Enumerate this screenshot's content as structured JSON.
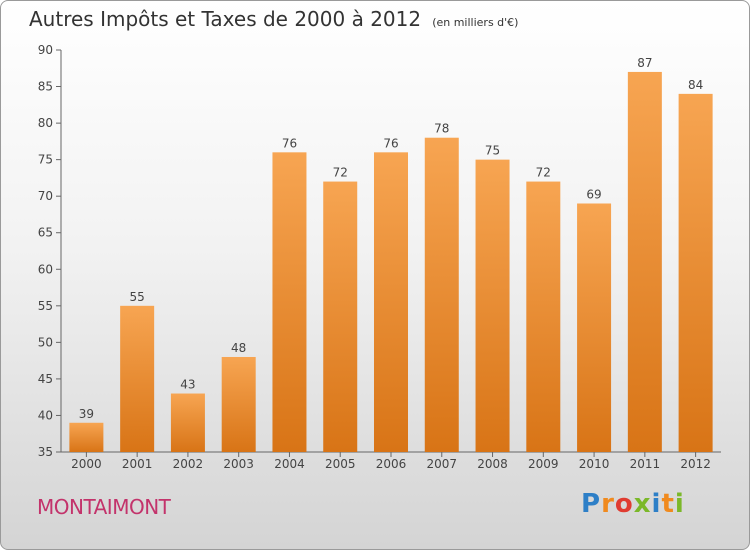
{
  "chart_data": {
    "type": "bar",
    "title": "Autres Impôts et Taxes de 2000 à 2012",
    "subtitle": "(en milliers d'€)",
    "categories": [
      "2000",
      "2001",
      "2002",
      "2003",
      "2004",
      "2005",
      "2006",
      "2007",
      "2008",
      "2009",
      "2010",
      "2011",
      "2012"
    ],
    "values": [
      39,
      55,
      43,
      48,
      76,
      72,
      76,
      78,
      75,
      72,
      69,
      87,
      84
    ],
    "ylim": [
      35,
      90
    ],
    "yticks": [
      "35",
      "40",
      "45",
      "50",
      "55",
      "60",
      "65",
      "70",
      "75",
      "80",
      "85",
      "90"
    ],
    "grid": false,
    "bar_color": "#f0a050"
  },
  "commune": "MONTAIMONT",
  "logo": {
    "letters": [
      "P",
      "r",
      "o",
      "x",
      "i",
      "t",
      "i"
    ],
    "colors": [
      "#2d7fc7",
      "#f08a1e",
      "#e03c31",
      "#7bb829",
      "#2d7fc7",
      "#f08a1e",
      "#7bb829"
    ]
  }
}
